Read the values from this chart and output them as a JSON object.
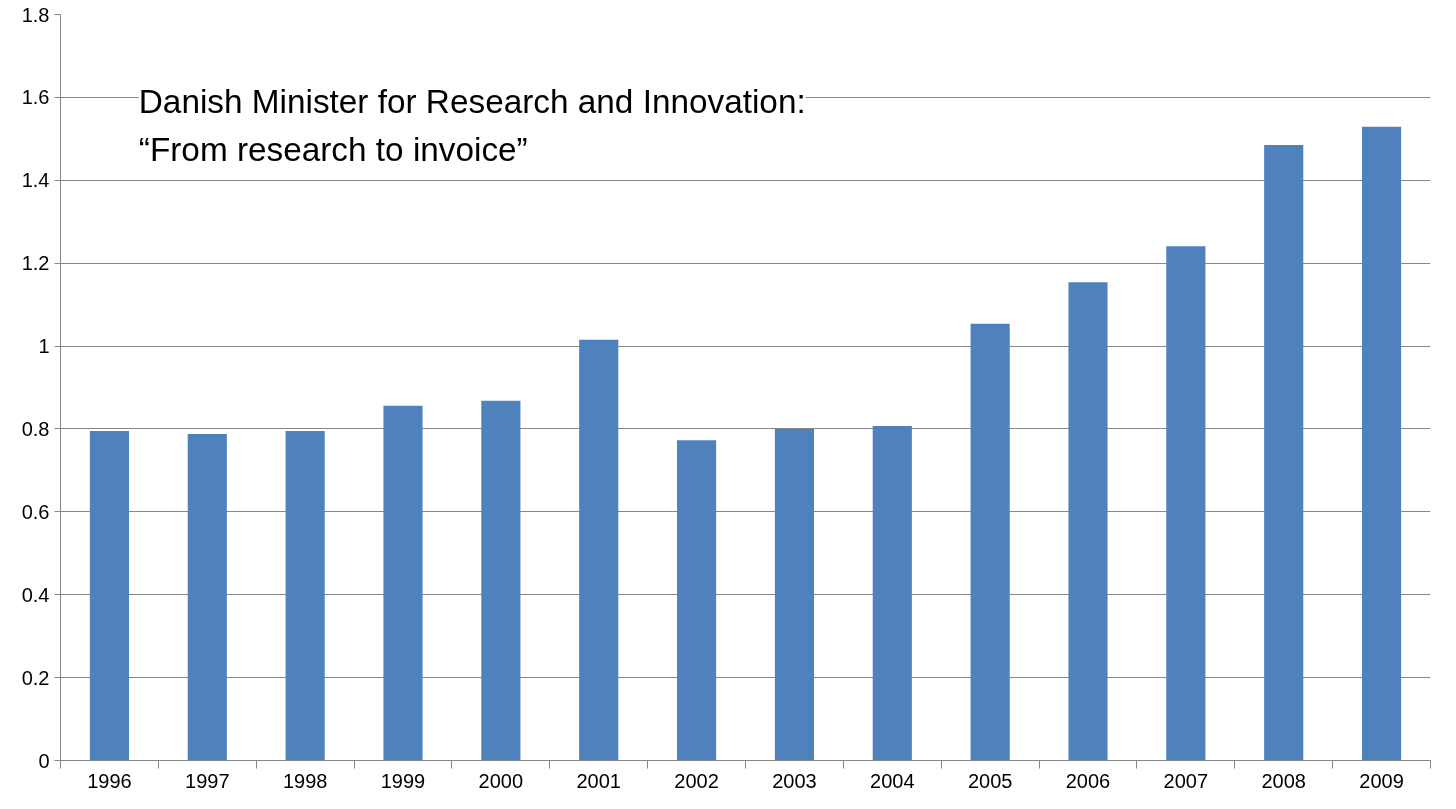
{
  "chart_data": {
    "type": "bar",
    "categories": [
      "1996",
      "1997",
      "1998",
      "1999",
      "2000",
      "2001",
      "2002",
      "2003",
      "2004",
      "2005",
      "2006",
      "2007",
      "2008",
      "2009"
    ],
    "values": [
      0.795,
      0.788,
      0.795,
      0.856,
      0.868,
      1.015,
      0.773,
      0.8,
      0.807,
      1.054,
      1.154,
      1.241,
      1.485,
      1.529
    ],
    "color": "#4f81bd",
    "ylim": [
      0,
      1.8
    ],
    "yticks": [
      0,
      0.2,
      0.4,
      0.6,
      0.8,
      1,
      1.2,
      1.4,
      1.6,
      1.8
    ],
    "grid": "y",
    "annotations": [
      "Danish Minister for Research and Innovation:\n“From research to invoice”"
    ]
  }
}
